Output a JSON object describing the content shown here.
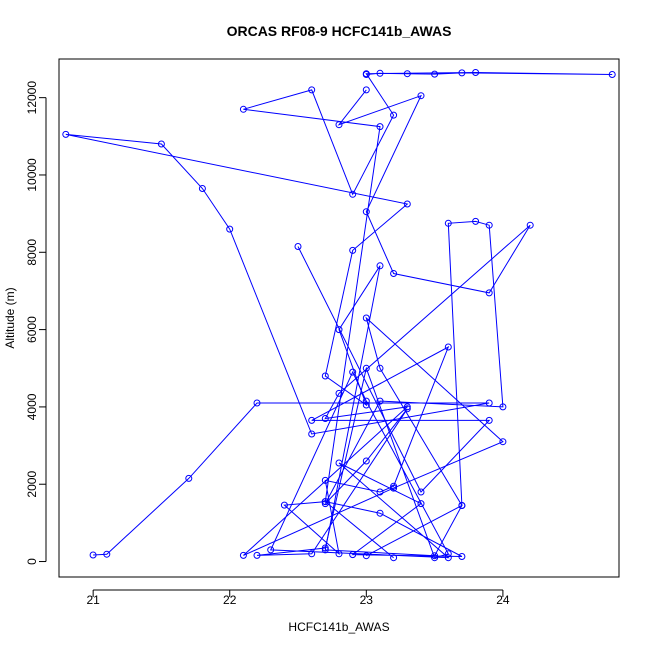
{
  "chart_data": {
    "type": "line",
    "title": "ORCAS RF08-9 HCFC141b_AWAS",
    "xlabel": "HCFC141b_AWAS",
    "ylabel": "Altitude (m)",
    "xlim": [
      20.75,
      24.85
    ],
    "ylim": [
      -400,
      13000
    ],
    "xticks": [
      21,
      22,
      23,
      24
    ],
    "yticks": [
      0,
      2000,
      4000,
      6000,
      8000,
      10000,
      12000
    ],
    "series_color": "#0000ff",
    "markers": "open-circle",
    "series": [
      {
        "x": [
          21.0,
          21.1,
          21.7,
          22.2,
          23.9,
          22.6,
          22.0,
          21.8,
          21.5,
          20.8,
          23.3,
          22.9,
          22.7,
          23.0,
          22.8,
          23.1,
          22.7,
          23.5,
          23.7,
          23.1,
          23.0,
          24.0,
          23.2,
          22.1,
          23.3,
          22.7,
          22.8,
          24.2,
          23.9,
          23.2,
          23.0,
          23.4,
          22.8,
          23.0
        ],
        "y": [
          170,
          190,
          2150,
          4100,
          4100,
          3300,
          8600,
          9650,
          10800,
          11050,
          9250,
          8050,
          4800,
          4050,
          6000,
          7650,
          300,
          150,
          1450,
          5000,
          6300,
          3100,
          1900,
          160,
          4000,
          3700,
          4350,
          8700,
          6950,
          7450,
          9050,
          12050,
          11300,
          12200
        ]
      },
      {
        "x": [
          23.0,
          23.1,
          23.3,
          23.5,
          23.7,
          24.8,
          23.8,
          23.0,
          23.2,
          22.9,
          22.6,
          22.1,
          23.1,
          22.7,
          22.4,
          22.8,
          22.7,
          23.1,
          23.2,
          23.6,
          22.6,
          23.9,
          23.4,
          22.5
        ],
        "y": [
          12600,
          12630,
          12620,
          12610,
          12640,
          12600,
          12650,
          12620,
          11550,
          9500,
          12200,
          11700,
          11250,
          1550,
          1460,
          200,
          2100,
          1800,
          1950,
          5550,
          3650,
          3650,
          1800,
          8150
        ]
      },
      {
        "x": [
          23.0,
          23.7,
          23.6,
          23.8,
          23.9,
          24.0,
          23.1,
          22.7,
          23.0,
          23.3,
          22.6,
          22.2,
          22.7,
          23.0,
          23.5,
          23.6,
          23.0,
          22.9,
          22.3,
          23.6,
          22.8,
          23.4,
          22.9,
          23.7,
          23.1,
          22.7,
          23.2
        ],
        "y": [
          150,
          1450,
          8750,
          8800,
          8700,
          4000,
          4150,
          1500,
          2600,
          3950,
          200,
          160,
          350,
          5000,
          100,
          200,
          4150,
          4900,
          300,
          100,
          2550,
          1500,
          180,
          130,
          1250,
          1550,
          100
        ]
      }
    ]
  }
}
